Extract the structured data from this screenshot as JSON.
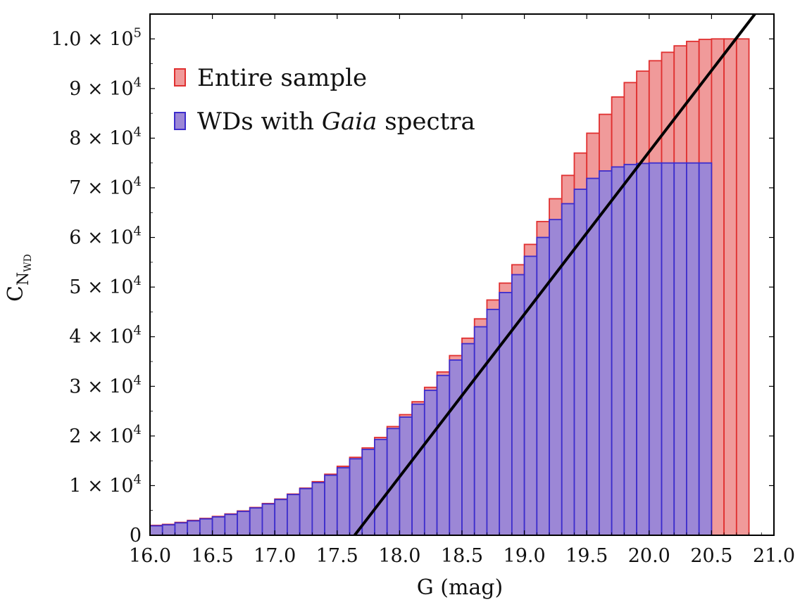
{
  "chart_data": {
    "type": "bar",
    "xlabel": "G (mag)",
    "ylabel": "C",
    "ylabel_subscript": "N",
    "ylabel_sub_subscript": "WD",
    "xlim": [
      16.0,
      21.0
    ],
    "ylim": [
      0,
      105000
    ],
    "bin_width": 0.1,
    "x_ticks": [
      "16.0",
      "16.5",
      "17.0",
      "17.5",
      "18.0",
      "18.5",
      "19.0",
      "19.5",
      "20.0",
      "20.5",
      "21.0"
    ],
    "y_ticks": [
      {
        "mantissa": "1.0",
        "exponent": "5"
      },
      {
        "mantissa": "9",
        "exponent": "4"
      },
      {
        "mantissa": "8",
        "exponent": "4"
      },
      {
        "mantissa": "7",
        "exponent": "4"
      },
      {
        "mantissa": "6",
        "exponent": "4"
      },
      {
        "mantissa": "5",
        "exponent": "4"
      },
      {
        "mantissa": "4",
        "exponent": "4"
      },
      {
        "mantissa": "3",
        "exponent": "4"
      },
      {
        "mantissa": "2",
        "exponent": "4"
      },
      {
        "mantissa": "1",
        "exponent": "4"
      },
      {
        "mantissa": "0",
        "exponent": ""
      }
    ],
    "series": [
      {
        "name": "Entire sample",
        "color": "#f09a9a",
        "edge_color": "#e03030",
        "x": [
          16.0,
          16.1,
          16.2,
          16.3,
          16.4,
          16.5,
          16.6,
          16.7,
          16.8,
          16.9,
          17.0,
          17.1,
          17.2,
          17.3,
          17.4,
          17.5,
          17.6,
          17.7,
          17.8,
          17.9,
          18.0,
          18.1,
          18.2,
          18.3,
          18.4,
          18.5,
          18.6,
          18.7,
          18.8,
          18.9,
          19.0,
          19.1,
          19.2,
          19.3,
          19.4,
          19.5,
          19.6,
          19.7,
          19.8,
          19.9,
          20.0,
          20.1,
          20.2,
          20.3,
          20.4,
          20.5,
          20.6,
          20.7
        ],
        "values": [
          2000,
          2200,
          2600,
          3000,
          3400,
          3800,
          4300,
          4900,
          5600,
          6400,
          7300,
          8300,
          9500,
          10800,
          12300,
          13900,
          15700,
          17600,
          19700,
          21900,
          24300,
          26900,
          29800,
          32900,
          36200,
          39700,
          43600,
          47400,
          50800,
          54500,
          58600,
          63200,
          67800,
          72500,
          77000,
          81000,
          84800,
          88300,
          91200,
          93500,
          95600,
          97300,
          98600,
          99500,
          99900,
          100000,
          100000,
          100000
        ]
      },
      {
        "name": "WDs with Gaia spectra",
        "name_prefix": "WDs with ",
        "name_italic": "Gaia",
        "name_suffix": " spectra",
        "color": "#9c87d6",
        "edge_color": "#3d2dcc",
        "x": [
          16.0,
          16.1,
          16.2,
          16.3,
          16.4,
          16.5,
          16.6,
          16.7,
          16.8,
          16.9,
          17.0,
          17.1,
          17.2,
          17.3,
          17.4,
          17.5,
          17.6,
          17.7,
          17.8,
          17.9,
          18.0,
          18.1,
          18.2,
          18.3,
          18.4,
          18.5,
          18.6,
          18.7,
          18.8,
          18.9,
          19.0,
          19.1,
          19.2,
          19.3,
          19.4,
          19.5,
          19.6,
          19.7,
          19.8,
          19.9,
          20.0,
          20.1,
          20.2,
          20.3,
          20.4
        ],
        "values": [
          1900,
          2100,
          2500,
          2900,
          3300,
          3700,
          4200,
          4800,
          5500,
          6300,
          7200,
          8200,
          9400,
          10600,
          12100,
          13600,
          15400,
          17300,
          19300,
          21500,
          23800,
          26400,
          29200,
          32200,
          35300,
          38600,
          42000,
          45500,
          48900,
          52500,
          56200,
          60000,
          63600,
          66800,
          69700,
          71900,
          73400,
          74200,
          74700,
          74900,
          75000,
          75000,
          75000,
          75000,
          75000
        ]
      }
    ],
    "fit_line": {
      "color": "#000000",
      "points": [
        [
          17.64,
          0
        ],
        [
          21.0,
          110000
        ]
      ]
    },
    "legend_position": "top-left"
  }
}
